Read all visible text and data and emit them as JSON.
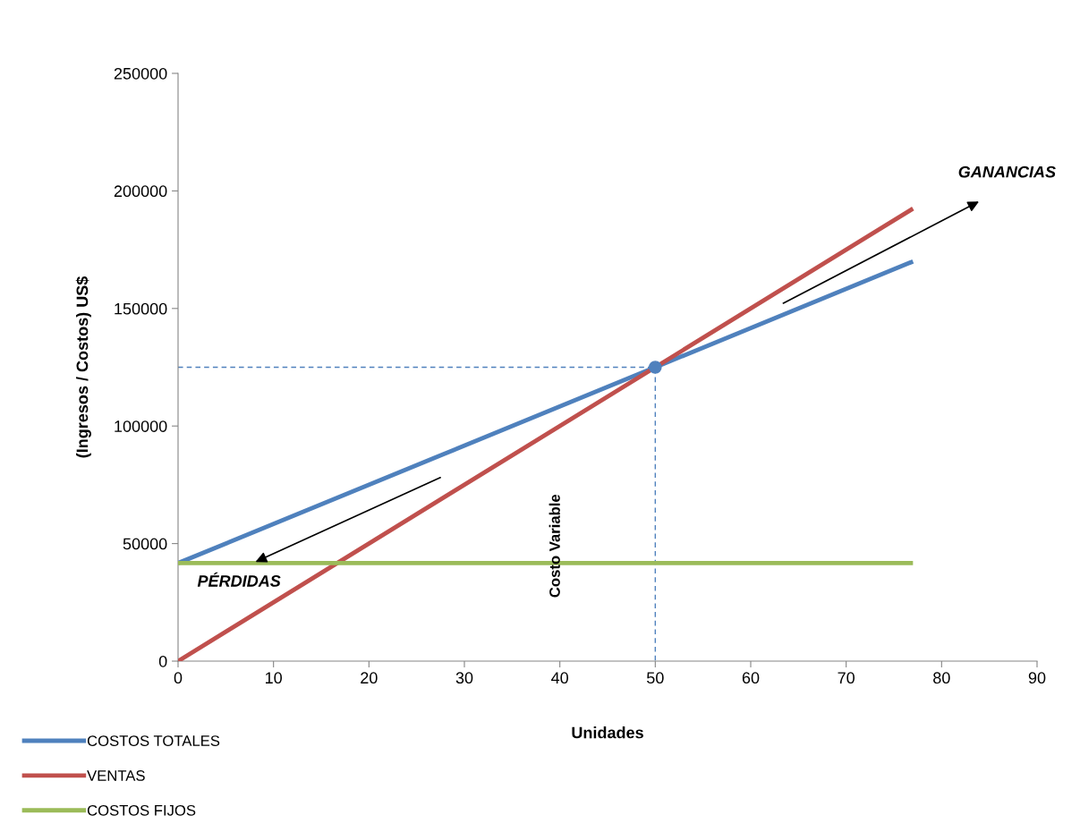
{
  "chart_data": {
    "type": "line",
    "xlabel": "Unidades",
    "ylabel": "(Ingresos / Costos) US$",
    "series": [
      {
        "name": "COSTOS TOTALES",
        "color": "#4f81bd",
        "x": [
          0,
          50,
          77
        ],
        "values": [
          41700,
          125000,
          170000
        ]
      },
      {
        "name": "VENTAS",
        "color": "#c0504d",
        "x": [
          0,
          50,
          77
        ],
        "values": [
          0,
          125000,
          192500
        ]
      },
      {
        "name": "COSTOS FIJOS",
        "color": "#9bbb59",
        "x": [
          0,
          50,
          77
        ],
        "values": [
          41700,
          41700,
          41700
        ]
      },
      {
        "type": "line",
        "color": "#4f81bd",
        "line_style": "dashed",
        "x": [
          0,
          50,
          50
        ],
        "values": [
          125000,
          125000,
          0
        ]
      },
      {
        "type": "scatter",
        "color": "#4f81bd",
        "marker": "circle",
        "x": [
          50
        ],
        "values": [
          125000
        ]
      }
    ],
    "annotations": [
      "GANANCIAS",
      "PÉRDIDAS",
      "Costo Variable"
    ],
    "xlim": [
      0,
      90
    ],
    "xticks": [
      0,
      10,
      20,
      30,
      40,
      50,
      60,
      70,
      80,
      90
    ],
    "ylim": [
      0,
      250000
    ],
    "yticks": [
      0,
      50000,
      100000,
      150000,
      200000,
      250000
    ],
    "grid": false,
    "legend": "bottom left",
    "marker": "none",
    "line_style": "solid"
  }
}
